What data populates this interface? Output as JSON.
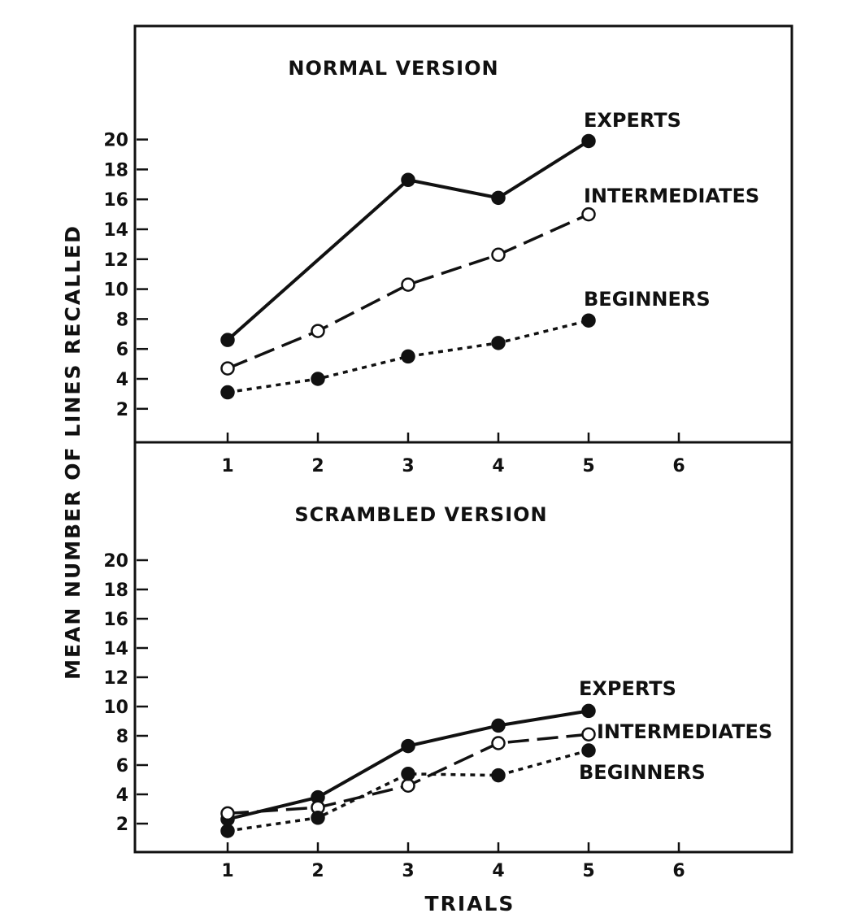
{
  "chart_data": {
    "type": "line",
    "ylabel": "MEAN NUMBER OF LINES RECALLED",
    "xlabel": "TRIALS",
    "x_ticks": [
      1,
      2,
      3,
      4,
      5,
      6
    ],
    "y_ticks": [
      2,
      4,
      6,
      8,
      10,
      12,
      14,
      16,
      18,
      20
    ],
    "xlim": [
      0,
      7
    ],
    "ylim": [
      0,
      22
    ],
    "grid": false,
    "legend": "direct labels at line ends",
    "panels": [
      {
        "title": "NORMAL VERSION",
        "series": [
          {
            "name": "EXPERTS",
            "marker": "filled",
            "line": "solid",
            "x": [
              1,
              3,
              4,
              5
            ],
            "y": [
              6.6,
              17.3,
              16.1,
              19.9
            ]
          },
          {
            "name": "INTERMEDIATES",
            "marker": "open",
            "line": "dashed",
            "x": [
              1,
              2,
              3,
              4,
              5
            ],
            "y": [
              4.7,
              7.2,
              10.3,
              12.3,
              15.0
            ]
          },
          {
            "name": "BEGINNERS",
            "marker": "filled",
            "line": "dotted",
            "x": [
              1,
              2,
              3,
              4,
              5
            ],
            "y": [
              3.1,
              4.0,
              5.5,
              6.4,
              7.9
            ]
          }
        ]
      },
      {
        "title": "SCRAMBLED VERSION",
        "series": [
          {
            "name": "EXPERTS",
            "marker": "filled",
            "line": "solid",
            "x": [
              1,
              2,
              3,
              4,
              5
            ],
            "y": [
              2.3,
              3.8,
              7.3,
              8.7,
              9.7
            ]
          },
          {
            "name": "INTERMEDIATES",
            "marker": "open",
            "line": "dashed",
            "x": [
              1,
              2,
              3,
              4,
              5
            ],
            "y": [
              2.7,
              3.1,
              4.6,
              7.5,
              8.1
            ]
          },
          {
            "name": "BEGINNERS",
            "marker": "filled",
            "line": "dotted",
            "x": [
              1,
              2,
              3,
              4,
              5
            ],
            "y": [
              1.5,
              2.4,
              5.4,
              5.3,
              7.0
            ]
          }
        ]
      }
    ]
  },
  "colors": {
    "ink": "#111111",
    "background": "#ffffff"
  }
}
